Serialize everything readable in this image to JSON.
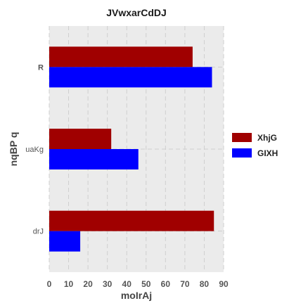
{
  "chart_data": {
    "type": "bar",
    "orientation": "horizontal",
    "title": "JVwxarCdDJ",
    "xlabel": "moIrAj",
    "ylabel": "nqBP q",
    "categories": [
      "R",
      "uaKg",
      "drJ"
    ],
    "series": [
      {
        "name": "XhjG",
        "values": [
          74,
          32,
          85
        ],
        "color": "#a00000"
      },
      {
        "name": "GIXH",
        "values": [
          84,
          46,
          16
        ],
        "color": "#0000ff"
      }
    ],
    "xlim": [
      0,
      90
    ],
    "xticks": [
      0,
      10,
      20,
      30,
      40,
      50,
      60,
      70,
      80,
      90
    ],
    "grid": true,
    "legend_position": "right",
    "background": "#ebebeb"
  }
}
